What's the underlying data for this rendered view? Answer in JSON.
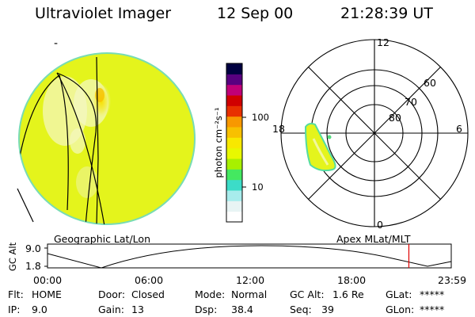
{
  "header": {
    "instrument": "Ultraviolet Imager",
    "date": "12 Sep 00",
    "time": "21:28:39 UT"
  },
  "colorbar": {
    "unit_label": "photon cm⁻²s⁻¹",
    "tick_labels": [
      "100",
      "10"
    ],
    "scale": "log",
    "colors": [
      "#ffffff",
      "#e8f4f4",
      "#a8ecec",
      "#3cdcc8",
      "#44e860",
      "#a8f000",
      "#e8f800",
      "#f8e800",
      "#f8c000",
      "#f89800",
      "#e83000",
      "#d00000",
      "#c00078",
      "#580080",
      "#000040"
    ]
  },
  "left_panel": {
    "caption": "Geographic Lat/Lon",
    "tick_mark": "-"
  },
  "polar_plot": {
    "caption": "Apex MLat/MLT",
    "mlt_labels": {
      "top": "12",
      "bottom": "0",
      "left": "18",
      "right": "6"
    },
    "lat_labels": [
      "60",
      "70",
      "80"
    ]
  },
  "altitude_strip": {
    "y_axis_label": "GC Alt",
    "y_ticks": [
      "9.0",
      "1.8"
    ],
    "time_ticks": [
      "00:00",
      "06:00",
      "12:00",
      "18:00",
      "23:59"
    ],
    "current_time_marker_hours": 21.48
  },
  "status": {
    "flt_label": "Flt:",
    "flt_value": "HOME",
    "ip_label": "IP:",
    "ip_value": "9.0",
    "door_label": "Door:",
    "door_value": "Closed",
    "gain_label": "Gain:",
    "gain_value": "13",
    "mode_label": "Mode:",
    "mode_value": "Normal",
    "dsp_label": "Dsp:",
    "dsp_value": "38.4",
    "gcalt_label": "GC Alt:",
    "gcalt_value": "1.6 Re",
    "seq_label": "Seq:",
    "seq_value": "39",
    "glat_label": "GLat:",
    "glat_value": "*****",
    "glon_label": "GLon:",
    "glon_value": "*****"
  }
}
